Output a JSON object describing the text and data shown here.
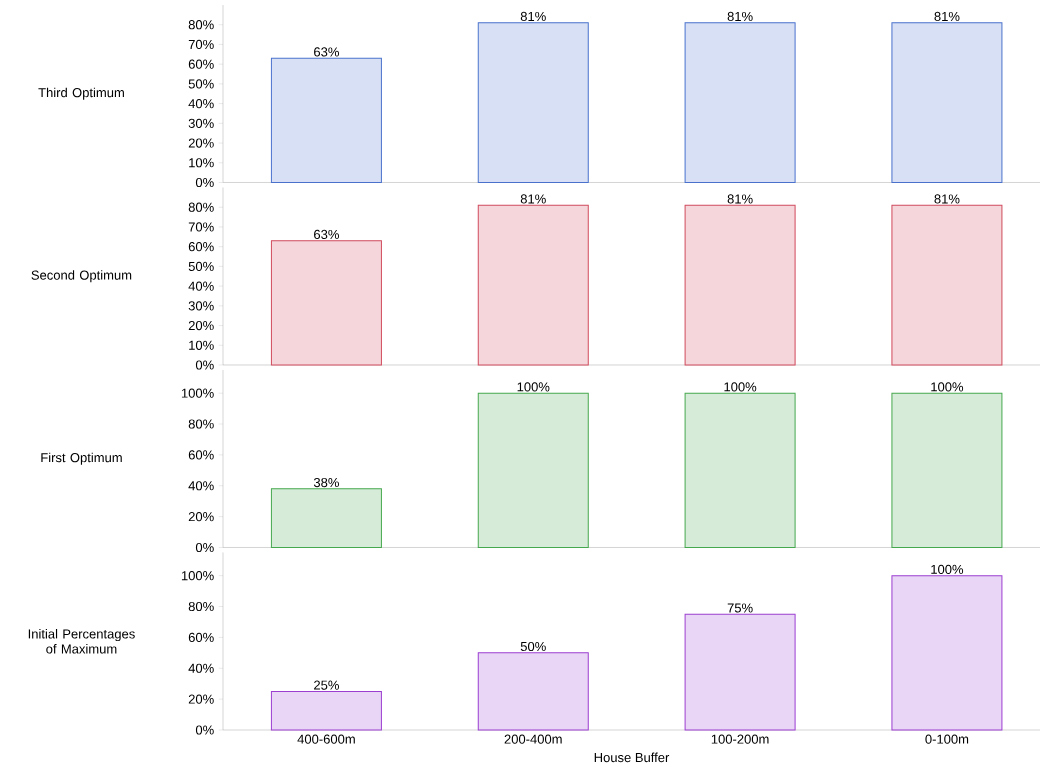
{
  "chart_data": [
    {
      "type": "bar",
      "ylabel": "Third Optimum",
      "categories": [
        null,
        null,
        null,
        null
      ],
      "values": [
        63,
        81,
        81,
        81
      ],
      "value_labels": [
        "63%",
        "81%",
        "81%",
        "81%"
      ],
      "color": "#4a72cc",
      "ylim": [
        0,
        90
      ],
      "yticks": [
        {
          "value": 0,
          "label": "0%"
        },
        {
          "value": 10,
          "label": "10%"
        },
        {
          "value": 20,
          "label": "20%"
        },
        {
          "value": 30,
          "label": "30%"
        },
        {
          "value": 40,
          "label": "40%"
        },
        {
          "value": 50,
          "label": "50%"
        },
        {
          "value": 60,
          "label": "60%"
        },
        {
          "value": 70,
          "label": "70%"
        },
        {
          "value": 80,
          "label": "80%"
        }
      ],
      "tick_labels": "y"
    },
    {
      "type": "bar",
      "ylabel": "Second Optimum",
      "categories": [
        null,
        null,
        null,
        null
      ],
      "values": [
        63,
        81,
        81,
        81
      ],
      "value_labels": [
        "63%",
        "81%",
        "81%",
        "81%"
      ],
      "color": "#d04a5c",
      "ylim": [
        0,
        90
      ],
      "yticks": [
        {
          "value": 0,
          "label": "0%"
        },
        {
          "value": 10,
          "label": "10%"
        },
        {
          "value": 20,
          "label": "20%"
        },
        {
          "value": 30,
          "label": "30%"
        },
        {
          "value": 40,
          "label": "40%"
        },
        {
          "value": 50,
          "label": "50%"
        },
        {
          "value": 60,
          "label": "60%"
        },
        {
          "value": 70,
          "label": "70%"
        },
        {
          "value": 80,
          "label": "80%"
        }
      ],
      "tick_labels": "y"
    },
    {
      "type": "bar",
      "ylabel": "First Optimum",
      "categories": [
        null,
        null,
        null,
        null
      ],
      "values": [
        38,
        100,
        100,
        100
      ],
      "value_labels": [
        "38%",
        "100%",
        "100%",
        "100%"
      ],
      "color": "#46a84e",
      "ylim": [
        0,
        115
      ],
      "yticks": [
        {
          "value": 0,
          "label": "0%"
        },
        {
          "value": 20,
          "label": "20%"
        },
        {
          "value": 40,
          "label": "40%"
        },
        {
          "value": 60,
          "label": "60%"
        },
        {
          "value": 80,
          "label": "80%"
        },
        {
          "value": 100,
          "label": "100%"
        }
      ],
      "tick_labels": "y"
    },
    {
      "type": "bar",
      "ylabel": "Initial Percentages of Maximum",
      "xlabel": "House Buffer",
      "categories": [
        "400-600m",
        "200-400m",
        "100-200m",
        "0-100m"
      ],
      "values": [
        25,
        50,
        75,
        100
      ],
      "value_labels": [
        "25%",
        "50%",
        "75%",
        "100%"
      ],
      "color": "#9b3fd0",
      "ylim": [
        0,
        115
      ],
      "yticks": [
        {
          "value": 0,
          "label": "0%"
        },
        {
          "value": 20,
          "label": "20%"
        },
        {
          "value": 40,
          "label": "40%"
        },
        {
          "value": 60,
          "label": "60%"
        },
        {
          "value": 80,
          "label": "80%"
        },
        {
          "value": 100,
          "label": "100%"
        }
      ]
    }
  ]
}
